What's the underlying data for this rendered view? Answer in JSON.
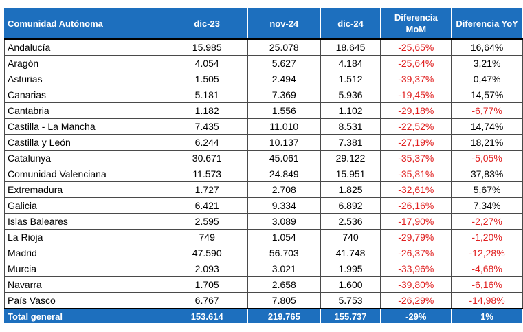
{
  "headers": [
    "Comunidad Autónoma",
    "dic-23",
    "nov-24",
    "dic-24",
    "Diferencia MoM",
    "Diferencia YoY"
  ],
  "rows": [
    {
      "name": "Andalucía",
      "dic23": "15.985",
      "nov24": "25.078",
      "dic24": "18.645",
      "mom": "-25,65%",
      "yoy": "16,64%"
    },
    {
      "name": "Aragón",
      "dic23": "4.054",
      "nov24": "5.627",
      "dic24": "4.184",
      "mom": "-25,64%",
      "yoy": "3,21%"
    },
    {
      "name": "Asturias",
      "dic23": "1.505",
      "nov24": "2.494",
      "dic24": "1.512",
      "mom": "-39,37%",
      "yoy": "0,47%"
    },
    {
      "name": "Canarias",
      "dic23": "5.181",
      "nov24": "7.369",
      "dic24": "5.936",
      "mom": "-19,45%",
      "yoy": "14,57%"
    },
    {
      "name": "Cantabria",
      "dic23": "1.182",
      "nov24": "1.556",
      "dic24": "1.102",
      "mom": "-29,18%",
      "yoy": "-6,77%"
    },
    {
      "name": "Castilla - La Mancha",
      "dic23": "7.435",
      "nov24": "11.010",
      "dic24": "8.531",
      "mom": "-22,52%",
      "yoy": "14,74%"
    },
    {
      "name": "Castilla y León",
      "dic23": "6.244",
      "nov24": "10.137",
      "dic24": "7.381",
      "mom": "-27,19%",
      "yoy": "18,21%"
    },
    {
      "name": "Catalunya",
      "dic23": "30.671",
      "nov24": "45.061",
      "dic24": "29.122",
      "mom": "-35,37%",
      "yoy": "-5,05%"
    },
    {
      "name": "Comunidad Valenciana",
      "dic23": "11.573",
      "nov24": "24.849",
      "dic24": "15.951",
      "mom": "-35,81%",
      "yoy": "37,83%"
    },
    {
      "name": "Extremadura",
      "dic23": "1.727",
      "nov24": "2.708",
      "dic24": "1.825",
      "mom": "-32,61%",
      "yoy": "5,67%"
    },
    {
      "name": "Galicia",
      "dic23": "6.421",
      "nov24": "9.334",
      "dic24": "6.892",
      "mom": "-26,16%",
      "yoy": "7,34%"
    },
    {
      "name": "Islas Baleares",
      "dic23": "2.595",
      "nov24": "3.089",
      "dic24": "2.536",
      "mom": "-17,90%",
      "yoy": "-2,27%"
    },
    {
      "name": "La Rioja",
      "dic23": "749",
      "nov24": "1.054",
      "dic24": "740",
      "mom": "-29,79%",
      "yoy": "-1,20%"
    },
    {
      "name": "Madrid",
      "dic23": "47.590",
      "nov24": "56.703",
      "dic24": "41.748",
      "mom": "-26,37%",
      "yoy": "-12,28%"
    },
    {
      "name": "Murcia",
      "dic23": "2.093",
      "nov24": "3.021",
      "dic24": "1.995",
      "mom": "-33,96%",
      "yoy": "-4,68%"
    },
    {
      "name": "Navarra",
      "dic23": "1.705",
      "nov24": "2.658",
      "dic24": "1.600",
      "mom": "-39,80%",
      "yoy": "-6,16%"
    },
    {
      "name": "País Vasco",
      "dic23": "6.767",
      "nov24": "7.805",
      "dic24": "5.753",
      "mom": "-26,29%",
      "yoy": "-14,98%"
    }
  ],
  "total": {
    "name": "Total general",
    "dic23": "153.614",
    "nov24": "219.765",
    "dic24": "155.737",
    "mom": "-29%",
    "yoy": "1%"
  },
  "colors": {
    "header_bg": "#1d6fbe",
    "negative": "#e02020"
  }
}
